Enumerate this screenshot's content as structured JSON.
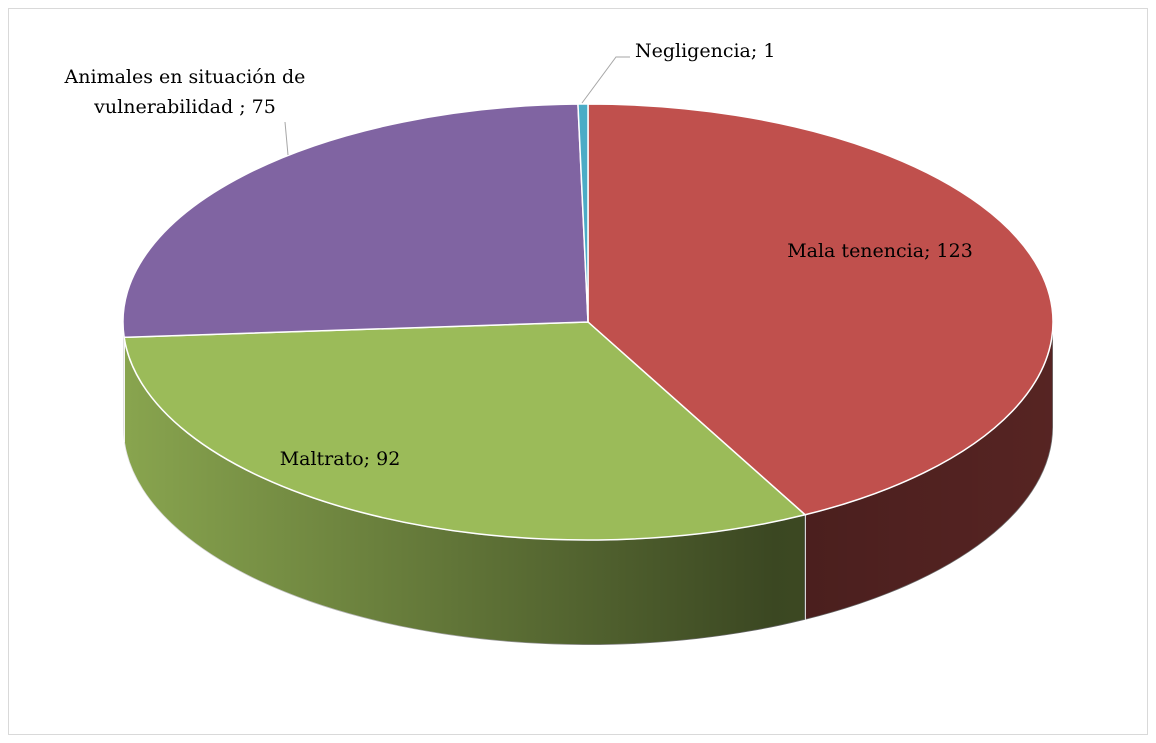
{
  "chart_data": {
    "type": "pie3d",
    "values": [
      123,
      92,
      75,
      1
    ],
    "value_labels": [
      "Mala tenencia; 123",
      "Maltrato; 92",
      "Animales en situación de vulnerabilidad ; 75",
      "Negligencia; 1"
    ],
    "colors": [
      "#c0504d",
      "#9bbb59",
      "#8064a2",
      "#4bacc6"
    ]
  }
}
